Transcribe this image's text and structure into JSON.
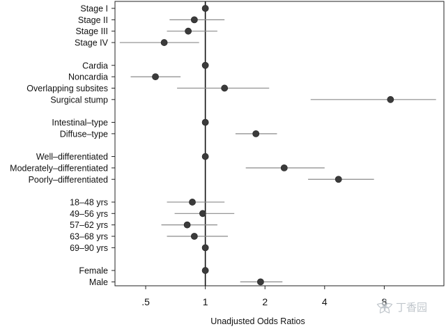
{
  "chart_data": {
    "type": "forest",
    "xlabel": "Unadjusted Odds Ratios",
    "x_scale": "log",
    "xlim": [
      0.35,
      16
    ],
    "reference_line": 1,
    "x_ticks": [
      {
        "value": 0.5,
        "label": ".5"
      },
      {
        "value": 1,
        "label": "1"
      },
      {
        "value": 2,
        "label": "2"
      },
      {
        "value": 4,
        "label": "4"
      },
      {
        "value": 8,
        "label": "8"
      }
    ],
    "rows": [
      {
        "label": "Stage I",
        "or": 1.0,
        "lo": null,
        "hi": null
      },
      {
        "label": "Stage II",
        "or": 0.88,
        "lo": 0.66,
        "hi": 1.25
      },
      {
        "label": "Stage III",
        "or": 0.82,
        "lo": 0.64,
        "hi": 1.15
      },
      {
        "label": "Stage IV",
        "or": 0.62,
        "lo": 0.37,
        "hi": 0.93
      },
      {
        "label": "",
        "gap": true
      },
      {
        "label": "Cardia",
        "or": 1.0,
        "lo": null,
        "hi": null
      },
      {
        "label": "Noncardia",
        "or": 0.56,
        "lo": 0.42,
        "hi": 0.75
      },
      {
        "label": "Overlapping subsites",
        "or": 1.25,
        "lo": 0.72,
        "hi": 2.1
      },
      {
        "label": "Surgical stump",
        "or": 8.6,
        "lo": 3.4,
        "hi": 14.6
      },
      {
        "label": "",
        "gap": true
      },
      {
        "label": "Intestinal–type",
        "or": 1.0,
        "lo": null,
        "hi": null
      },
      {
        "label": "Diffuse–type",
        "or": 1.8,
        "lo": 1.42,
        "hi": 2.3
      },
      {
        "label": "",
        "gap": true
      },
      {
        "label": "Well–differentiated",
        "or": 1.0,
        "lo": null,
        "hi": null
      },
      {
        "label": "Moderately–differentiated",
        "or": 2.5,
        "lo": 1.6,
        "hi": 4.0
      },
      {
        "label": "Poorly–differentiated",
        "or": 4.7,
        "lo": 3.3,
        "hi": 7.1
      },
      {
        "label": "",
        "gap": true
      },
      {
        "label": "18–48 yrs",
        "or": 0.86,
        "lo": 0.64,
        "hi": 1.25
      },
      {
        "label": "49–56 yrs",
        "or": 0.97,
        "lo": 0.7,
        "hi": 1.4
      },
      {
        "label": "57–62 yrs",
        "or": 0.81,
        "lo": 0.6,
        "hi": 1.15
      },
      {
        "label": "63–68 yrs",
        "or": 0.88,
        "lo": 0.64,
        "hi": 1.3
      },
      {
        "label": "69–90 yrs",
        "or": 1.0,
        "lo": null,
        "hi": null
      },
      {
        "label": "",
        "gap": true
      },
      {
        "label": "Female",
        "or": 1.0,
        "lo": null,
        "hi": null
      },
      {
        "label": "Male",
        "or": 1.9,
        "lo": 1.5,
        "hi": 2.45
      }
    ]
  },
  "watermark": {
    "text": "丁香园"
  }
}
